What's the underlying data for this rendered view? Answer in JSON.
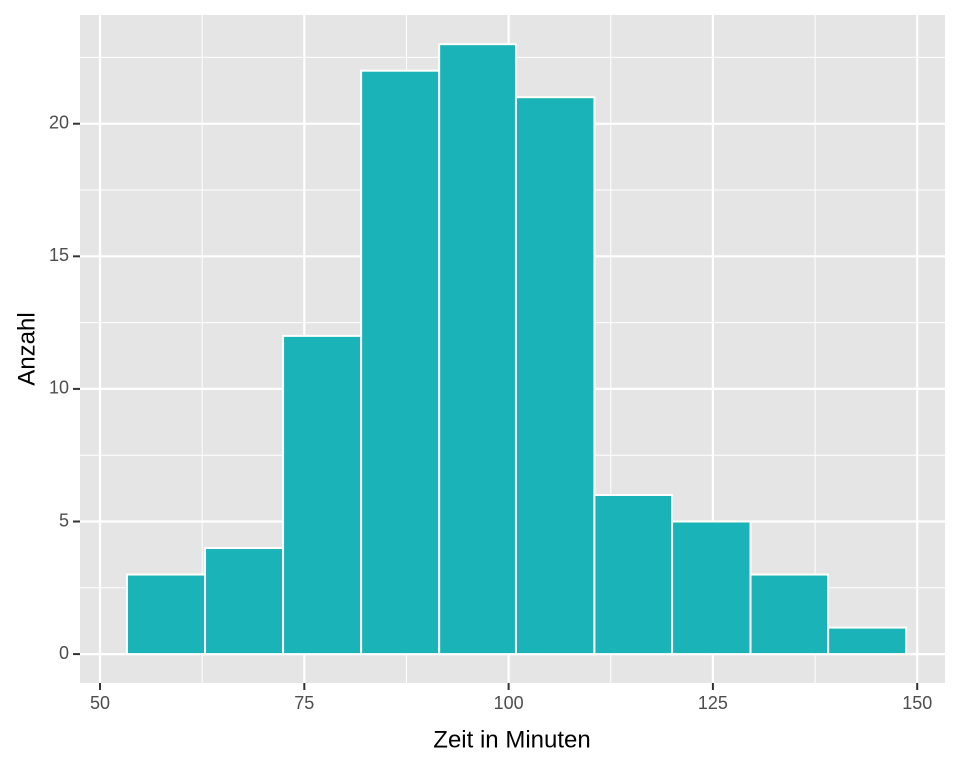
{
  "chart_data": {
    "type": "histogram",
    "x_label": "Zeit in Minuten",
    "y_label": "Anzahl",
    "bins": [
      53.3,
      62.85,
      72.4,
      81.95,
      91.5,
      100.9,
      110.5,
      120.0,
      129.6,
      139.1,
      148.65
    ],
    "counts": [
      3,
      4,
      12,
      22,
      23,
      21,
      6,
      5,
      3,
      1
    ],
    "color": "#1ab3b7",
    "xlim": [
      47.55,
      153.4
    ],
    "ylim": [
      -1.09,
      24.1
    ],
    "xticks": [
      50,
      75,
      100,
      125,
      150
    ],
    "yticks": [
      0,
      5,
      10,
      15,
      20
    ],
    "grid": true
  }
}
